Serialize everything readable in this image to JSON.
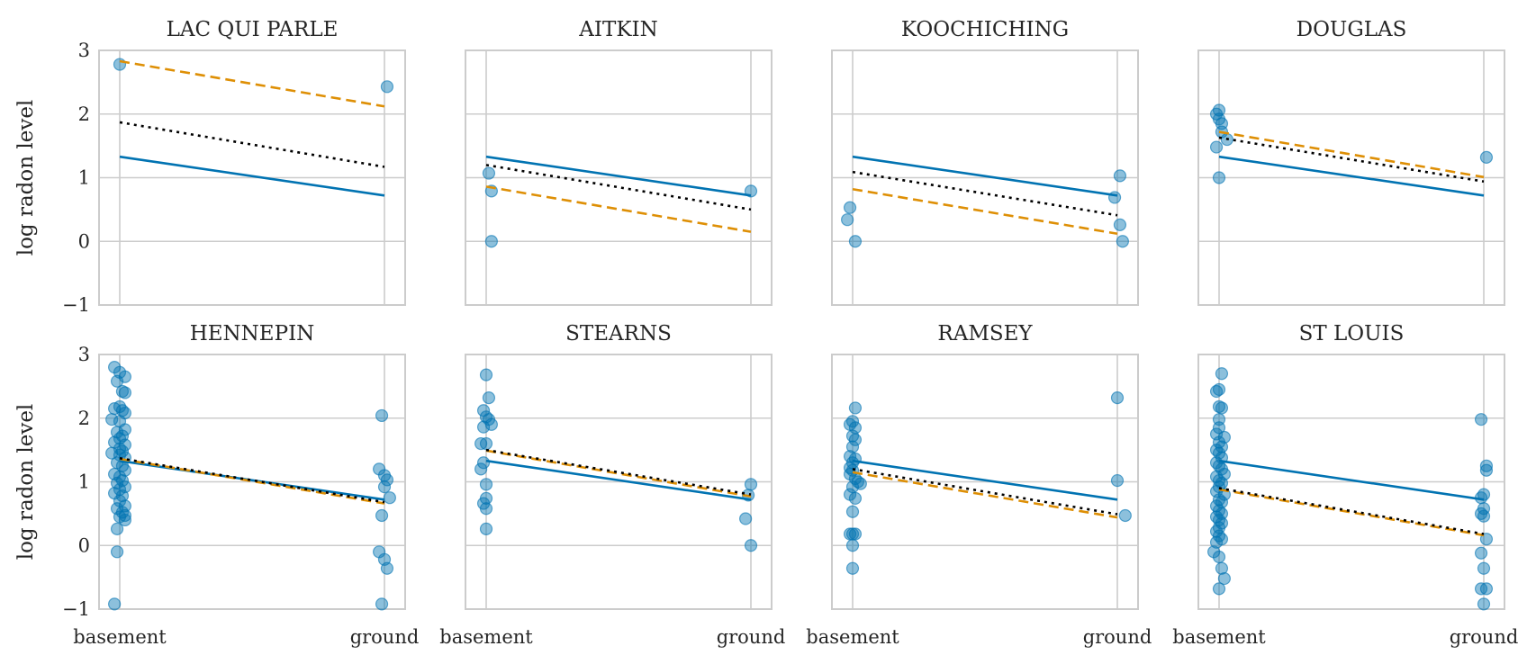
{
  "chart_data": {
    "type": "scatter",
    "layout": "facet-grid",
    "ylabel": "log radon level",
    "ylim": [
      -1,
      3
    ],
    "yticks": [
      "3",
      "2",
      "1",
      "0",
      "−1"
    ],
    "x_categories": [
      "basement",
      "ground"
    ],
    "x_numeric": {
      "basement": 0,
      "ground": 1
    },
    "grid": true,
    "colors": {
      "points": "#0173b2",
      "pooled_line": "#0173b2",
      "county_line": "#de8f05",
      "partial_line": "#000000"
    },
    "line_styles": {
      "pooled_line": "solid",
      "county_line": "dashed",
      "partial_line": "dotted"
    },
    "panels": [
      {
        "title": "LAC QUI PARLE",
        "pooled": [
          1.33,
          0.72
        ],
        "county": [
          2.83,
          2.12
        ],
        "partial": [
          1.87,
          1.17
        ],
        "points": [
          [
            0,
            2.78
          ],
          [
            1.01,
            2.43
          ]
        ]
      },
      {
        "title": "AITKIN",
        "pooled": [
          1.33,
          0.72
        ],
        "county": [
          0.86,
          0.15
        ],
        "partial": [
          1.2,
          0.5
        ],
        "points": [
          [
            0.01,
            1.07
          ],
          [
            0.02,
            0.79
          ],
          [
            0.02,
            0.0
          ],
          [
            1.0,
            0.79
          ]
        ]
      },
      {
        "title": "KOOCHICHING",
        "pooled": [
          1.33,
          0.72
        ],
        "county": [
          0.82,
          0.12
        ],
        "partial": [
          1.09,
          0.41
        ],
        "points": [
          [
            -0.01,
            0.53
          ],
          [
            -0.02,
            0.34
          ],
          [
            0.01,
            0.0
          ],
          [
            0.99,
            0.69
          ],
          [
            1.01,
            1.03
          ],
          [
            1.01,
            0.26
          ],
          [
            1.02,
            0.0
          ]
        ]
      },
      {
        "title": "DOUGLAS",
        "pooled": [
          1.33,
          0.72
        ],
        "county": [
          1.72,
          1.01
        ],
        "partial": [
          1.63,
          0.94
        ],
        "points": [
          [
            -0.01,
            2.0
          ],
          [
            0.0,
            2.06
          ],
          [
            0.0,
            1.92
          ],
          [
            0.01,
            1.85
          ],
          [
            0.01,
            1.72
          ],
          [
            0.03,
            1.6
          ],
          [
            -0.01,
            1.48
          ],
          [
            0.0,
            1.0
          ],
          [
            1.01,
            1.32
          ]
        ]
      },
      {
        "title": "HENNEPIN",
        "pooled": [
          1.33,
          0.72
        ],
        "county": [
          1.36,
          0.66
        ],
        "partial": [
          1.37,
          0.68
        ],
        "points": [
          [
            -0.02,
            2.8
          ],
          [
            0.0,
            2.72
          ],
          [
            0.02,
            2.65
          ],
          [
            -0.01,
            2.58
          ],
          [
            0.01,
            2.42
          ],
          [
            0.02,
            2.4
          ],
          [
            0.0,
            2.18
          ],
          [
            -0.02,
            2.15
          ],
          [
            0.01,
            2.12
          ],
          [
            0.02,
            2.08
          ],
          [
            -0.03,
            1.98
          ],
          [
            0.0,
            1.95
          ],
          [
            0.02,
            1.82
          ],
          [
            -0.01,
            1.78
          ],
          [
            0.01,
            1.72
          ],
          [
            0.0,
            1.68
          ],
          [
            -0.02,
            1.62
          ],
          [
            0.02,
            1.58
          ],
          [
            0.0,
            1.52
          ],
          [
            0.01,
            1.48
          ],
          [
            -0.03,
            1.45
          ],
          [
            0.0,
            1.42
          ],
          [
            0.02,
            1.38
          ],
          [
            -0.01,
            1.3
          ],
          [
            0.01,
            1.25
          ],
          [
            0.02,
            1.18
          ],
          [
            -0.02,
            1.12
          ],
          [
            0.0,
            1.08
          ],
          [
            0.01,
            1.02
          ],
          [
            -0.01,
            0.98
          ],
          [
            0.02,
            0.92
          ],
          [
            0.0,
            0.88
          ],
          [
            -0.02,
            0.82
          ],
          [
            0.01,
            0.78
          ],
          [
            0.0,
            0.7
          ],
          [
            0.02,
            0.62
          ],
          [
            -0.01,
            0.58
          ],
          [
            0.01,
            0.52
          ],
          [
            0.02,
            0.47
          ],
          [
            0.0,
            0.45
          ],
          [
            0.02,
            0.4
          ],
          [
            -0.01,
            0.26
          ],
          [
            -0.01,
            -0.1
          ],
          [
            -0.02,
            -0.92
          ],
          [
            0.99,
            2.04
          ],
          [
            0.98,
            1.2
          ],
          [
            1.0,
            1.1
          ],
          [
            1.01,
            1.03
          ],
          [
            1.0,
            0.92
          ],
          [
            1.02,
            0.75
          ],
          [
            0.99,
            0.47
          ],
          [
            0.98,
            -0.1
          ],
          [
            1.0,
            -0.22
          ],
          [
            1.01,
            -0.36
          ],
          [
            0.99,
            -0.92
          ]
        ]
      },
      {
        "title": "STEARNS",
        "pooled": [
          1.33,
          0.72
        ],
        "county": [
          1.49,
          0.77
        ],
        "partial": [
          1.5,
          0.8
        ],
        "points": [
          [
            0.0,
            2.68
          ],
          [
            0.01,
            2.32
          ],
          [
            -0.01,
            2.12
          ],
          [
            0.0,
            2.02
          ],
          [
            0.01,
            1.98
          ],
          [
            0.02,
            1.9
          ],
          [
            -0.01,
            1.86
          ],
          [
            -0.02,
            1.6
          ],
          [
            0.0,
            1.6
          ],
          [
            -0.01,
            1.3
          ],
          [
            -0.02,
            1.2
          ],
          [
            0.0,
            0.96
          ],
          [
            0.0,
            0.74
          ],
          [
            -0.01,
            0.66
          ],
          [
            0.0,
            0.58
          ],
          [
            0.0,
            0.26
          ],
          [
            1.0,
            0.96
          ],
          [
            0.99,
            0.79
          ],
          [
            0.98,
            0.42
          ],
          [
            1.0,
            0.0
          ]
        ]
      },
      {
        "title": "RAMSEY",
        "pooled": [
          1.33,
          0.72
        ],
        "county": [
          1.15,
          0.44
        ],
        "partial": [
          1.2,
          0.49
        ],
        "points": [
          [
            0.01,
            2.16
          ],
          [
            0.0,
            1.95
          ],
          [
            -0.01,
            1.9
          ],
          [
            0.01,
            1.85
          ],
          [
            0.0,
            1.72
          ],
          [
            0.01,
            1.66
          ],
          [
            0.0,
            1.55
          ],
          [
            -0.01,
            1.4
          ],
          [
            0.01,
            1.36
          ],
          [
            0.0,
            1.3
          ],
          [
            -0.01,
            1.22
          ],
          [
            0.0,
            1.18
          ],
          [
            -0.01,
            1.12
          ],
          [
            0.01,
            1.05
          ],
          [
            0.02,
            1.0
          ],
          [
            0.03,
            0.97
          ],
          [
            0.0,
            0.92
          ],
          [
            -0.01,
            0.8
          ],
          [
            0.01,
            0.74
          ],
          [
            0.0,
            0.53
          ],
          [
            -0.01,
            0.18
          ],
          [
            0.0,
            0.18
          ],
          [
            0.01,
            0.18
          ],
          [
            0.0,
            0.0
          ],
          [
            0.0,
            -0.36
          ],
          [
            1.0,
            2.32
          ],
          [
            1.0,
            1.02
          ],
          [
            1.03,
            0.47
          ]
        ]
      },
      {
        "title": "ST LOUIS",
        "pooled": [
          1.33,
          0.72
        ],
        "county": [
          0.88,
          0.16
        ],
        "partial": [
          0.9,
          0.18
        ],
        "points": [
          [
            0.01,
            2.7
          ],
          [
            0.0,
            2.45
          ],
          [
            -0.01,
            2.42
          ],
          [
            0.0,
            2.18
          ],
          [
            0.01,
            2.16
          ],
          [
            0.0,
            1.98
          ],
          [
            0.0,
            1.85
          ],
          [
            -0.01,
            1.75
          ],
          [
            0.02,
            1.7
          ],
          [
            0.0,
            1.62
          ],
          [
            0.01,
            1.55
          ],
          [
            -0.01,
            1.5
          ],
          [
            0.0,
            1.45
          ],
          [
            0.01,
            1.38
          ],
          [
            -0.01,
            1.3
          ],
          [
            0.0,
            1.25
          ],
          [
            0.01,
            1.2
          ],
          [
            0.02,
            1.12
          ],
          [
            -0.01,
            1.08
          ],
          [
            0.0,
            1.02
          ],
          [
            0.01,
            0.98
          ],
          [
            0.0,
            0.92
          ],
          [
            -0.01,
            0.85
          ],
          [
            0.02,
            0.8
          ],
          [
            0.0,
            0.72
          ],
          [
            0.01,
            0.68
          ],
          [
            -0.01,
            0.62
          ],
          [
            0.0,
            0.55
          ],
          [
            0.01,
            0.5
          ],
          [
            -0.01,
            0.45
          ],
          [
            0.0,
            0.4
          ],
          [
            0.01,
            0.35
          ],
          [
            0.0,
            0.28
          ],
          [
            -0.01,
            0.22
          ],
          [
            0.0,
            0.15
          ],
          [
            0.01,
            0.1
          ],
          [
            -0.01,
            0.05
          ],
          [
            -0.02,
            -0.1
          ],
          [
            0.0,
            -0.18
          ],
          [
            0.01,
            -0.36
          ],
          [
            0.02,
            -0.52
          ],
          [
            0.0,
            -0.68
          ],
          [
            0.99,
            1.98
          ],
          [
            1.01,
            1.25
          ],
          [
            1.01,
            1.18
          ],
          [
            1.0,
            0.8
          ],
          [
            0.99,
            0.75
          ],
          [
            1.0,
            0.58
          ],
          [
            0.99,
            0.5
          ],
          [
            1.0,
            0.46
          ],
          [
            1.01,
            0.1
          ],
          [
            0.99,
            -0.12
          ],
          [
            1.0,
            -0.36
          ],
          [
            0.99,
            -0.68
          ],
          [
            1.01,
            -0.68
          ],
          [
            1.0,
            -0.92
          ]
        ]
      }
    ]
  }
}
